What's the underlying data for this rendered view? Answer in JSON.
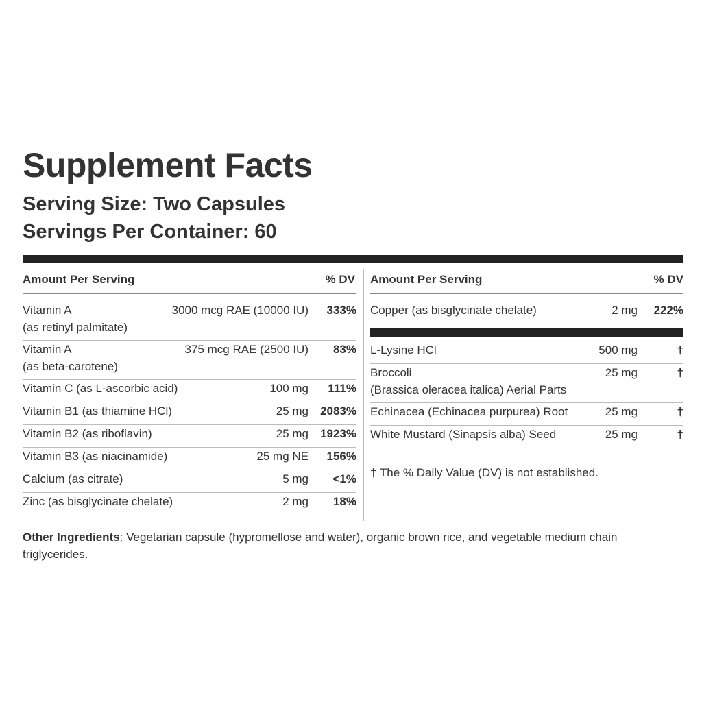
{
  "title": "Supplement Facts",
  "serving_size": "Serving Size: Two Capsules",
  "servings_per_container": "Servings Per Container: 60",
  "left": {
    "header": {
      "amount": "Amount Per Serving",
      "dv": "% DV"
    },
    "groups": [
      [
        {
          "name": [
            "Vitamin A",
            "(as retinyl palmitate)"
          ],
          "amount": "3000 mcg RAE (10000 IU)",
          "dv": "333%"
        },
        {
          "name": [
            "Vitamin A",
            "(as beta-carotene)"
          ],
          "amount": "375 mcg RAE (2500 IU)",
          "dv": "83%"
        },
        {
          "name": [
            "Vitamin C (as L-ascorbic acid)"
          ],
          "amount": "100 mg",
          "dv": "111%"
        },
        {
          "name": [
            "Vitamin B1 (as thiamine HCl)"
          ],
          "amount": "25 mg",
          "dv": "2083%"
        },
        {
          "name": [
            "Vitamin B2 (as riboflavin)"
          ],
          "amount": "25 mg",
          "dv": "1923%"
        },
        {
          "name": [
            "Vitamin B3 (as niacinamide)"
          ],
          "amount": "25 mg NE",
          "dv": "156%"
        },
        {
          "name": [
            "Calcium (as citrate)"
          ],
          "amount": "5 mg",
          "dv": "<1%"
        },
        {
          "name": [
            "Zinc (as bisglycinate chelate)"
          ],
          "amount": "2 mg",
          "dv": "18%"
        }
      ]
    ]
  },
  "right": {
    "header": {
      "amount": "Amount Per Serving",
      "dv": "% DV"
    },
    "groups": [
      [
        {
          "name": [
            "Copper (as bisglycinate chelate)"
          ],
          "amount": "2 mg",
          "dv": "222%"
        }
      ],
      [
        {
          "name": [
            "L-Lysine HCl"
          ],
          "amount": "500 mg",
          "dv": "†"
        },
        {
          "name": [
            "Broccoli",
            "(Brassica oleracea italica) Aerial Parts"
          ],
          "amount": "25 mg",
          "dv": "†"
        },
        {
          "name": [
            "Echinacea (Echinacea purpurea) Root"
          ],
          "amount": "25 mg",
          "dv": "†"
        },
        {
          "name": [
            "White Mustard (Sinapsis alba) Seed"
          ],
          "amount": "25 mg",
          "dv": "†"
        }
      ]
    ]
  },
  "footnote": "† The % Daily Value (DV) is not established.",
  "other_ingredients": {
    "label": "Other Ingredients",
    "text": ": Vegetarian capsule (hypromellose and water), organic brown rice, and vegetable medium chain triglycerides."
  }
}
